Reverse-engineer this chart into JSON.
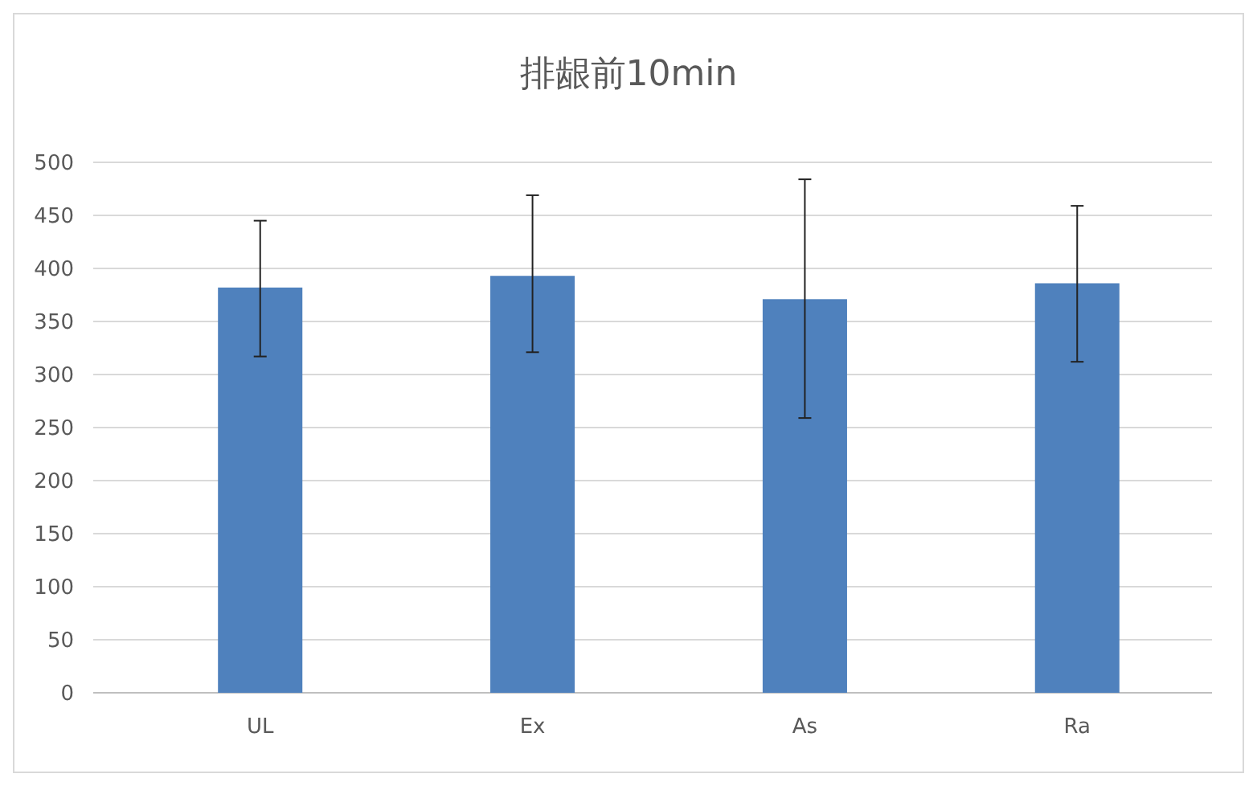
{
  "chart_data": {
    "type": "bar",
    "title": "排龈前10min",
    "categories": [
      "UL",
      "Ex",
      "As",
      "Ra"
    ],
    "values": [
      382,
      393,
      371,
      386
    ],
    "errors": [
      [
        317,
        445
      ],
      [
        321,
        469
      ],
      [
        259,
        484
      ],
      [
        312,
        459
      ]
    ],
    "color": "#4f81bd",
    "ylim": [
      0,
      500
    ],
    "yticks": [
      0,
      50,
      100,
      150,
      200,
      250,
      300,
      350,
      400,
      450,
      500
    ],
    "grid": "y"
  }
}
